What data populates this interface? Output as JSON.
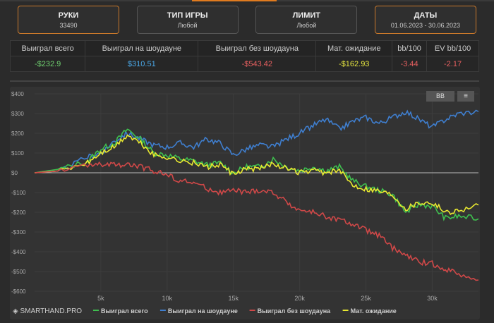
{
  "filters": [
    {
      "title": "РУКИ",
      "value": "33490",
      "active": true
    },
    {
      "title": "ТИП ИГРЫ",
      "value": "Любой",
      "active": false
    },
    {
      "title": "ЛИМИТ",
      "value": "Любой",
      "active": false
    },
    {
      "title": "ДАТЫ",
      "value": "01.06.2023 - 30.06.2023",
      "active": true
    }
  ],
  "stats": {
    "headers": [
      "Выиграл всего",
      "Выиграл на шоудауне",
      "Выиграл без шоудауна",
      "Мат. ожидание",
      "bb/100",
      "EV bb/100"
    ],
    "values": [
      "-$232.9",
      "$310.51",
      "-$543.42",
      "-$162.93",
      "-3.44",
      "-2.17"
    ],
    "colors": [
      "#6fcf6f",
      "#4aa8e8",
      "#e86060",
      "#e8e840",
      "#e86060",
      "#e86060"
    ]
  },
  "chart_controls": {
    "bb": "BB",
    "menu": "≡"
  },
  "brand": "SMARTHAND.PRO",
  "chart_data": {
    "type": "line",
    "xlim": [
      0,
      33490
    ],
    "ylim": [
      -600,
      400
    ],
    "xticks": [
      5000,
      10000,
      15000,
      20000,
      25000,
      30000
    ],
    "xtick_labels": [
      "5k",
      "10k",
      "15k",
      "20k",
      "25k",
      "30k"
    ],
    "yticks": [
      400,
      300,
      200,
      100,
      0,
      -100,
      -200,
      -300,
      -400,
      -500,
      -600
    ],
    "ytick_labels": [
      "$400",
      "$300",
      "$200",
      "$100",
      "$0",
      "-$100",
      "-$200",
      "-$300",
      "-$400",
      "-$500",
      "-$600"
    ],
    "legend_position": "bottom",
    "x": [
      0,
      2000,
      4000,
      5000,
      6000,
      7000,
      8000,
      9000,
      10000,
      11000,
      12000,
      13000,
      14000,
      15000,
      16000,
      17000,
      18000,
      19000,
      20000,
      21000,
      22000,
      23000,
      24000,
      25000,
      26000,
      27000,
      28000,
      29000,
      30000,
      31000,
      32000,
      33490
    ],
    "series": [
      {
        "name": "Выиграл всего",
        "color": "#3fbf4f",
        "values": [
          0,
          20,
          60,
          120,
          150,
          220,
          170,
          100,
          90,
          70,
          60,
          40,
          50,
          0,
          30,
          30,
          70,
          30,
          10,
          30,
          10,
          30,
          -40,
          -70,
          -90,
          -110,
          -200,
          -160,
          -170,
          -230,
          -220,
          -233
        ]
      },
      {
        "name": "Выиграл на шоудауне",
        "color": "#3f7fd0",
        "values": [
          0,
          10,
          80,
          100,
          160,
          200,
          170,
          140,
          130,
          150,
          130,
          170,
          150,
          90,
          120,
          140,
          130,
          170,
          200,
          240,
          270,
          220,
          260,
          280,
          250,
          280,
          310,
          270,
          230,
          270,
          300,
          310
        ]
      },
      {
        "name": "Выиграл без шоудауна",
        "color": "#d04848",
        "values": [
          0,
          10,
          40,
          40,
          40,
          40,
          30,
          10,
          -10,
          -40,
          -50,
          -80,
          -100,
          -90,
          -100,
          -90,
          -100,
          -150,
          -190,
          -200,
          -220,
          -240,
          -260,
          -290,
          -320,
          -380,
          -420,
          -450,
          -460,
          -490,
          -510,
          -543
        ]
      },
      {
        "name": "Мат. ожидание",
        "color": "#e8e830",
        "values": [
          0,
          10,
          50,
          100,
          130,
          190,
          150,
          90,
          80,
          60,
          50,
          30,
          40,
          -10,
          20,
          20,
          50,
          20,
          0,
          10,
          0,
          10,
          -60,
          -80,
          -90,
          -110,
          -180,
          -150,
          -150,
          -200,
          -190,
          -163
        ]
      }
    ]
  }
}
